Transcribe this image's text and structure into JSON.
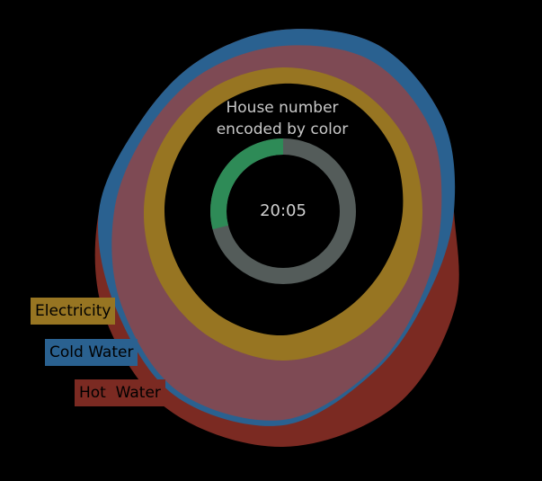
{
  "chart_data": {
    "type": "radial",
    "title": "House number\nencoded by color",
    "center_label": "20:05",
    "clock": {
      "progress_fraction": 0.29,
      "progress_color": "#2e8b57",
      "track_color": "#545c5a"
    },
    "angles_deg": [
      0,
      30,
      60,
      90,
      120,
      150,
      180,
      210,
      240,
      270,
      300,
      330
    ],
    "series": [
      {
        "name": "Hot  Water",
        "color": "#7b2a22",
        "radial_extent": [
          2.02,
          2.13,
          2.05,
          1.9,
          2.2,
          2.5,
          2.62,
          2.55,
          2.3,
          2.05,
          1.88,
          1.92
        ]
      },
      {
        "name": "Cold Water",
        "color": "#2a6190",
        "radial_extent": [
          2.02,
          2.13,
          2.05,
          1.9,
          1.86,
          2.05,
          2.38,
          2.38,
          2.15,
          2.05,
          1.88,
          1.92
        ]
      },
      {
        "name": "Electricity",
        "color": "#977522",
        "radial_extent": [
          1.6,
          1.6,
          1.58,
          1.55,
          1.58,
          1.62,
          1.66,
          1.62,
          1.58,
          1.55,
          1.55,
          1.58
        ]
      }
    ],
    "inner_boundary": {
      "color": "#000000",
      "radial_extent": [
        1.42,
        1.44,
        1.4,
        1.33,
        1.28,
        1.3,
        1.38,
        1.36,
        1.32,
        1.32,
        1.33,
        1.38
      ]
    },
    "bands": [
      {
        "color": "#7e4a54",
        "inner_radial_extent": [
          1.6,
          1.6,
          1.58,
          1.55,
          1.58,
          1.62,
          1.66,
          1.62,
          1.58,
          1.55,
          1.55,
          1.58
        ],
        "outer_radial_extent": [
          1.84,
          1.94,
          1.88,
          1.76,
          1.8,
          2.02,
          2.32,
          2.32,
          2.08,
          1.88,
          1.76,
          1.78
        ]
      }
    ],
    "legend_position": "left-bottom"
  }
}
